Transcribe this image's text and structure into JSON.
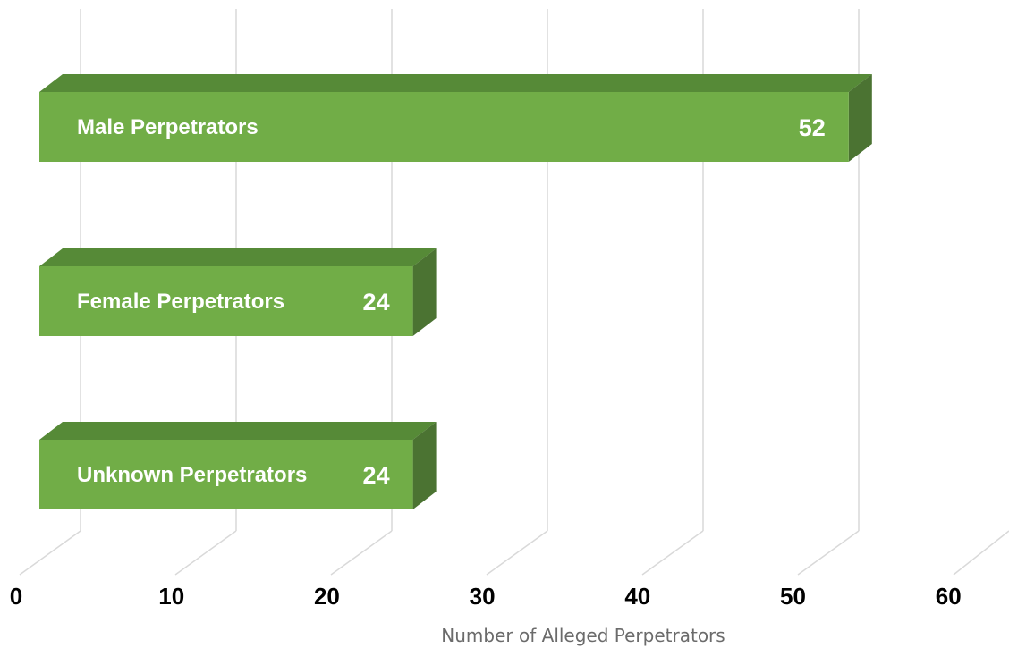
{
  "chart_data": {
    "type": "bar",
    "orientation": "horizontal",
    "three_d": true,
    "categories": [
      "Male Perpetrators",
      "Female Perpetrators",
      "Unknown Perpetrators"
    ],
    "values": [
      52,
      24,
      24
    ],
    "xlabel": "Number of Alleged Perpetrators",
    "xlim": [
      0,
      60
    ],
    "ticks": [
      "0",
      "10",
      "20",
      "30",
      "40",
      "50",
      "60"
    ],
    "grid": true,
    "colors": {
      "bar_front": "#71ad47",
      "bar_top": "#568a37",
      "bar_side": "#4b7332",
      "gridline": "#d9d9d9"
    }
  }
}
